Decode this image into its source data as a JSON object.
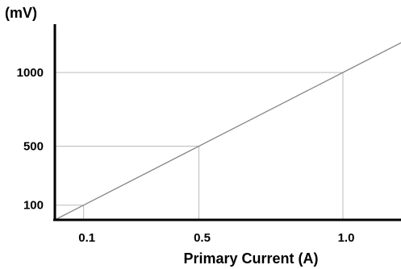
{
  "chart_data": {
    "type": "line",
    "title": "",
    "xlabel": "Primary Current  (A)",
    "ylabel": "(mV)",
    "x_ticks": [
      {
        "value": 0.1,
        "label": "0.1"
      },
      {
        "value": 0.5,
        "label": "0.5"
      },
      {
        "value": 1.0,
        "label": "1.0"
      }
    ],
    "y_ticks": [
      {
        "value": 100,
        "label": "100"
      },
      {
        "value": 500,
        "label": "500"
      },
      {
        "value": 1000,
        "label": "1000"
      }
    ],
    "series": [
      {
        "color": "#888888",
        "points": [
          {
            "x": 0,
            "y": 0
          },
          {
            "x": 0.1,
            "y": 100
          },
          {
            "x": 0.5,
            "y": 500
          },
          {
            "x": 1.0,
            "y": 1000
          },
          {
            "x": 1.25,
            "y": 1250
          }
        ]
      }
    ],
    "reference_lines": [
      {
        "x": 0.1,
        "y": 100
      },
      {
        "x": 0.5,
        "y": 500
      },
      {
        "x": 1.0,
        "y": 1000
      }
    ],
    "grid": false,
    "legend": "none"
  }
}
